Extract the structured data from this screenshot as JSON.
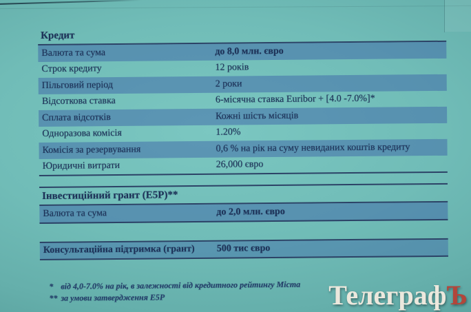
{
  "slide": {
    "credit": {
      "header": "Кредит",
      "rows": [
        {
          "label": "Валюта та сума",
          "value": "до 8,0 млн. євро"
        },
        {
          "label": "Строк кредиту",
          "value": "12 років"
        },
        {
          "label": "Пільговий період",
          "value": "2 роки"
        },
        {
          "label": "Відсоткова ставка",
          "value": "6-місячна ставка Euribor + [4.0 -7.0%]*"
        },
        {
          "label": "Сплата відсотків",
          "value": "Кожні шість місяців"
        },
        {
          "label": "Одноразова комісія",
          "value": "1.20%"
        },
        {
          "label": "Комісія за резервування",
          "value": "0,6 % на рік на суму невиданих коштів кредиту"
        },
        {
          "label": "Юридичні витрати",
          "value": "26,000 євро"
        }
      ]
    },
    "investment_grant": {
      "header": "Інвестиційний грант (E5P)**",
      "rows": [
        {
          "label": "Валюта та сума",
          "value": "до 2,0 млн. євро"
        }
      ]
    },
    "consulting_support": {
      "label": "Консультаційна підтримка (грант)",
      "value": "500 тис євро"
    },
    "footnotes": [
      {
        "marker": "*",
        "text": "від 4,0-7.0% на рік, в залежності від кредитного рейтингу Міста"
      },
      {
        "marker": "**",
        "text": "за умови затвердження E5P"
      }
    ]
  },
  "watermark": {
    "main": "Телеграф",
    "suffix": "Ъ"
  },
  "colors": {
    "slide_teal": "#6fbdb8",
    "stripe_blue": "#6f9cba",
    "ink_navy": "#1d3258",
    "watermark_white": "#ece8dd",
    "watermark_red": "#b2463b"
  }
}
